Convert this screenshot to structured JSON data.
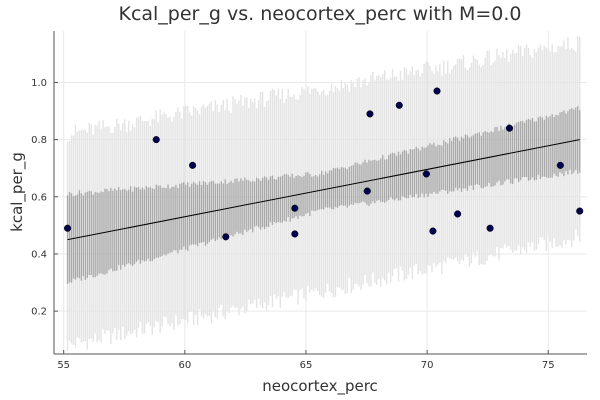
{
  "chart_data": {
    "type": "scatter",
    "title": "Kcal_per_g vs. neocortex_perc with M=0.0",
    "xlabel": "neocortex_perc",
    "ylabel": "kcal_per_g",
    "xlim": [
      54.6,
      76.6
    ],
    "ylim": [
      0.05,
      1.18
    ],
    "x_ticks": [
      "55",
      "60",
      "65",
      "70",
      "75"
    ],
    "y_ticks": [
      "0.2",
      "0.4",
      "0.6",
      "0.8",
      "1.0"
    ],
    "grid": true,
    "legend": "none",
    "points": [
      {
        "x": 55.16,
        "y": 0.49
      },
      {
        "x": 58.82,
        "y": 0.8
      },
      {
        "x": 60.32,
        "y": 0.71
      },
      {
        "x": 61.69,
        "y": 0.46
      },
      {
        "x": 64.54,
        "y": 0.56
      },
      {
        "x": 64.54,
        "y": 0.47
      },
      {
        "x": 67.53,
        "y": 0.62
      },
      {
        "x": 67.64,
        "y": 0.89
      },
      {
        "x": 68.85,
        "y": 0.92
      },
      {
        "x": 69.97,
        "y": 0.68
      },
      {
        "x": 70.24,
        "y": 0.48
      },
      {
        "x": 70.41,
        "y": 0.97
      },
      {
        "x": 71.26,
        "y": 0.54
      },
      {
        "x": 72.6,
        "y": 0.49
      },
      {
        "x": 73.4,
        "y": 0.84
      },
      {
        "x": 75.5,
        "y": 0.71
      },
      {
        "x": 76.3,
        "y": 0.55
      }
    ],
    "regression_line": {
      "x": [
        55.16,
        76.3
      ],
      "y": [
        0.45,
        0.8
      ]
    },
    "mean_interval": {
      "x": [
        55.16,
        65.5,
        76.3
      ],
      "lower": [
        0.3,
        0.55,
        0.69
      ],
      "upper": [
        0.61,
        0.68,
        0.91
      ]
    },
    "prediction_interval": {
      "x": [
        55.16,
        76.3
      ],
      "lower": [
        0.08,
        0.46
      ],
      "upper": [
        0.82,
        1.14
      ]
    },
    "colors": {
      "points": "#00004d",
      "regression_line": "#000000",
      "mean_interval": "#a9a9a9",
      "prediction_interval": "#e3e3e3"
    }
  }
}
